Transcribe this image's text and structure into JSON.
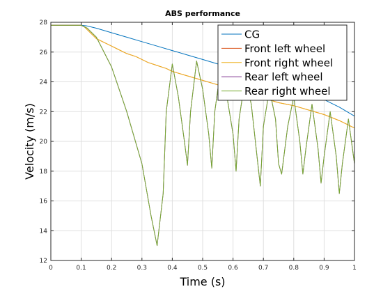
{
  "colors": {
    "grid": "#dfdfdf",
    "axis": "#262626",
    "legend_border": "#262626"
  },
  "chart_data": {
    "type": "line",
    "title": "ABS performance",
    "xlabel": "Time (s)",
    "ylabel": "Velocity (m/s)",
    "xlim": [
      0,
      1
    ],
    "ylim": [
      12,
      28
    ],
    "grid": true,
    "legend_position": "top-right",
    "xticks": [
      0,
      0.1,
      0.2,
      0.3,
      0.4,
      0.5,
      0.6,
      0.7,
      0.8,
      0.9,
      1
    ],
    "xtick_labels": [
      "0",
      "0.1",
      "0.2",
      "0.3",
      "0.4",
      "0.5",
      "0.6",
      "0.7",
      "0.8",
      "0.9",
      "1"
    ],
    "yticks": [
      12,
      14,
      16,
      18,
      20,
      22,
      24,
      26,
      28
    ],
    "ytick_labels": [
      "12",
      "14",
      "16",
      "18",
      "20",
      "22",
      "24",
      "26",
      "28"
    ],
    "series": [
      {
        "name": "CG",
        "color": "#0072bd",
        "x": [
          0,
          0.1,
          0.12,
          0.15,
          0.2,
          0.25,
          0.3,
          0.35,
          0.4,
          0.45,
          0.5,
          0.55,
          0.6,
          0.65,
          0.7,
          0.75,
          0.8,
          0.85,
          0.9,
          0.95,
          1.0
        ],
        "y": [
          27.8,
          27.8,
          27.75,
          27.6,
          27.3,
          27.0,
          26.7,
          26.4,
          26.1,
          25.8,
          25.5,
          25.2,
          24.9,
          24.6,
          24.3,
          24.0,
          23.6,
          23.2,
          22.8,
          22.3,
          21.7
        ]
      },
      {
        "name": "Front left wheel",
        "color": "#d95319",
        "x": [
          0,
          0.1,
          0.11,
          0.12,
          0.13,
          0.14,
          0.15,
          0.18,
          0.2,
          0.22,
          0.25,
          0.28,
          0.3,
          0.32,
          0.35,
          0.38,
          0.4,
          0.45,
          0.5,
          0.55,
          0.6,
          0.65,
          0.7,
          0.75,
          0.8,
          0.85,
          0.9,
          0.95,
          1.0
        ],
        "y": [
          27.8,
          27.8,
          27.7,
          27.5,
          27.3,
          27.1,
          26.9,
          26.6,
          26.4,
          26.2,
          25.9,
          25.7,
          25.5,
          25.3,
          25.1,
          24.9,
          24.7,
          24.4,
          24.1,
          23.8,
          23.5,
          23.2,
          22.9,
          22.6,
          22.4,
          22.1,
          21.8,
          21.4,
          20.9
        ]
      },
      {
        "name": "Front right wheel",
        "color": "#edb120",
        "x": [
          0,
          0.1,
          0.11,
          0.12,
          0.13,
          0.14,
          0.15,
          0.18,
          0.2,
          0.22,
          0.25,
          0.28,
          0.3,
          0.32,
          0.35,
          0.38,
          0.4,
          0.45,
          0.5,
          0.55,
          0.6,
          0.65,
          0.7,
          0.75,
          0.8,
          0.85,
          0.9,
          0.95,
          1.0
        ],
        "y": [
          27.8,
          27.8,
          27.7,
          27.5,
          27.3,
          27.1,
          26.9,
          26.6,
          26.4,
          26.2,
          25.9,
          25.7,
          25.5,
          25.3,
          25.1,
          24.9,
          24.7,
          24.4,
          24.1,
          23.8,
          23.5,
          23.2,
          22.9,
          22.6,
          22.4,
          22.1,
          21.8,
          21.4,
          20.9
        ]
      },
      {
        "name": "Rear left wheel",
        "color": "#7e2f8e",
        "x": [
          0,
          0.1,
          0.12,
          0.15,
          0.2,
          0.25,
          0.3,
          0.33,
          0.35,
          0.37,
          0.38,
          0.4,
          0.42,
          0.44,
          0.45,
          0.46,
          0.48,
          0.5,
          0.52,
          0.53,
          0.54,
          0.56,
          0.58,
          0.6,
          0.61,
          0.62,
          0.64,
          0.66,
          0.68,
          0.69,
          0.7,
          0.72,
          0.74,
          0.75,
          0.76,
          0.78,
          0.8,
          0.82,
          0.83,
          0.84,
          0.86,
          0.88,
          0.89,
          0.9,
          0.92,
          0.94,
          0.95,
          0.96,
          0.98,
          1.0
        ],
        "y": [
          27.8,
          27.8,
          27.6,
          27.0,
          25.0,
          22.0,
          18.5,
          15.0,
          13.0,
          16.5,
          22.0,
          25.2,
          23.0,
          20.0,
          18.4,
          22.0,
          25.4,
          23.5,
          20.5,
          18.2,
          22.0,
          25.0,
          23.0,
          20.5,
          18.0,
          21.5,
          24.2,
          22.5,
          18.8,
          17.0,
          21.0,
          23.5,
          21.5,
          18.5,
          17.8,
          21.0,
          23.0,
          20.0,
          17.8,
          19.5,
          22.5,
          19.5,
          17.2,
          19.0,
          22.0,
          19.0,
          16.5,
          18.5,
          21.5,
          18.5
        ]
      },
      {
        "name": "Rear right wheel",
        "color": "#77ac30",
        "x": [
          0,
          0.1,
          0.12,
          0.15,
          0.2,
          0.25,
          0.3,
          0.33,
          0.35,
          0.37,
          0.38,
          0.4,
          0.42,
          0.44,
          0.45,
          0.46,
          0.48,
          0.5,
          0.52,
          0.53,
          0.54,
          0.56,
          0.58,
          0.6,
          0.61,
          0.62,
          0.64,
          0.66,
          0.68,
          0.69,
          0.7,
          0.72,
          0.74,
          0.75,
          0.76,
          0.78,
          0.8,
          0.82,
          0.83,
          0.84,
          0.86,
          0.88,
          0.89,
          0.9,
          0.92,
          0.94,
          0.95,
          0.96,
          0.98,
          1.0
        ],
        "y": [
          27.8,
          27.8,
          27.6,
          27.0,
          25.0,
          22.0,
          18.5,
          15.0,
          13.0,
          16.5,
          22.0,
          25.2,
          23.0,
          20.0,
          18.4,
          22.0,
          25.4,
          23.5,
          20.5,
          18.2,
          22.0,
          25.0,
          23.0,
          20.5,
          18.0,
          21.5,
          24.2,
          22.5,
          18.8,
          17.0,
          21.0,
          23.5,
          21.5,
          18.5,
          17.8,
          21.0,
          23.0,
          20.0,
          17.8,
          19.5,
          22.5,
          19.5,
          17.2,
          19.0,
          22.0,
          19.0,
          16.5,
          18.5,
          21.5,
          18.5
        ]
      }
    ]
  }
}
